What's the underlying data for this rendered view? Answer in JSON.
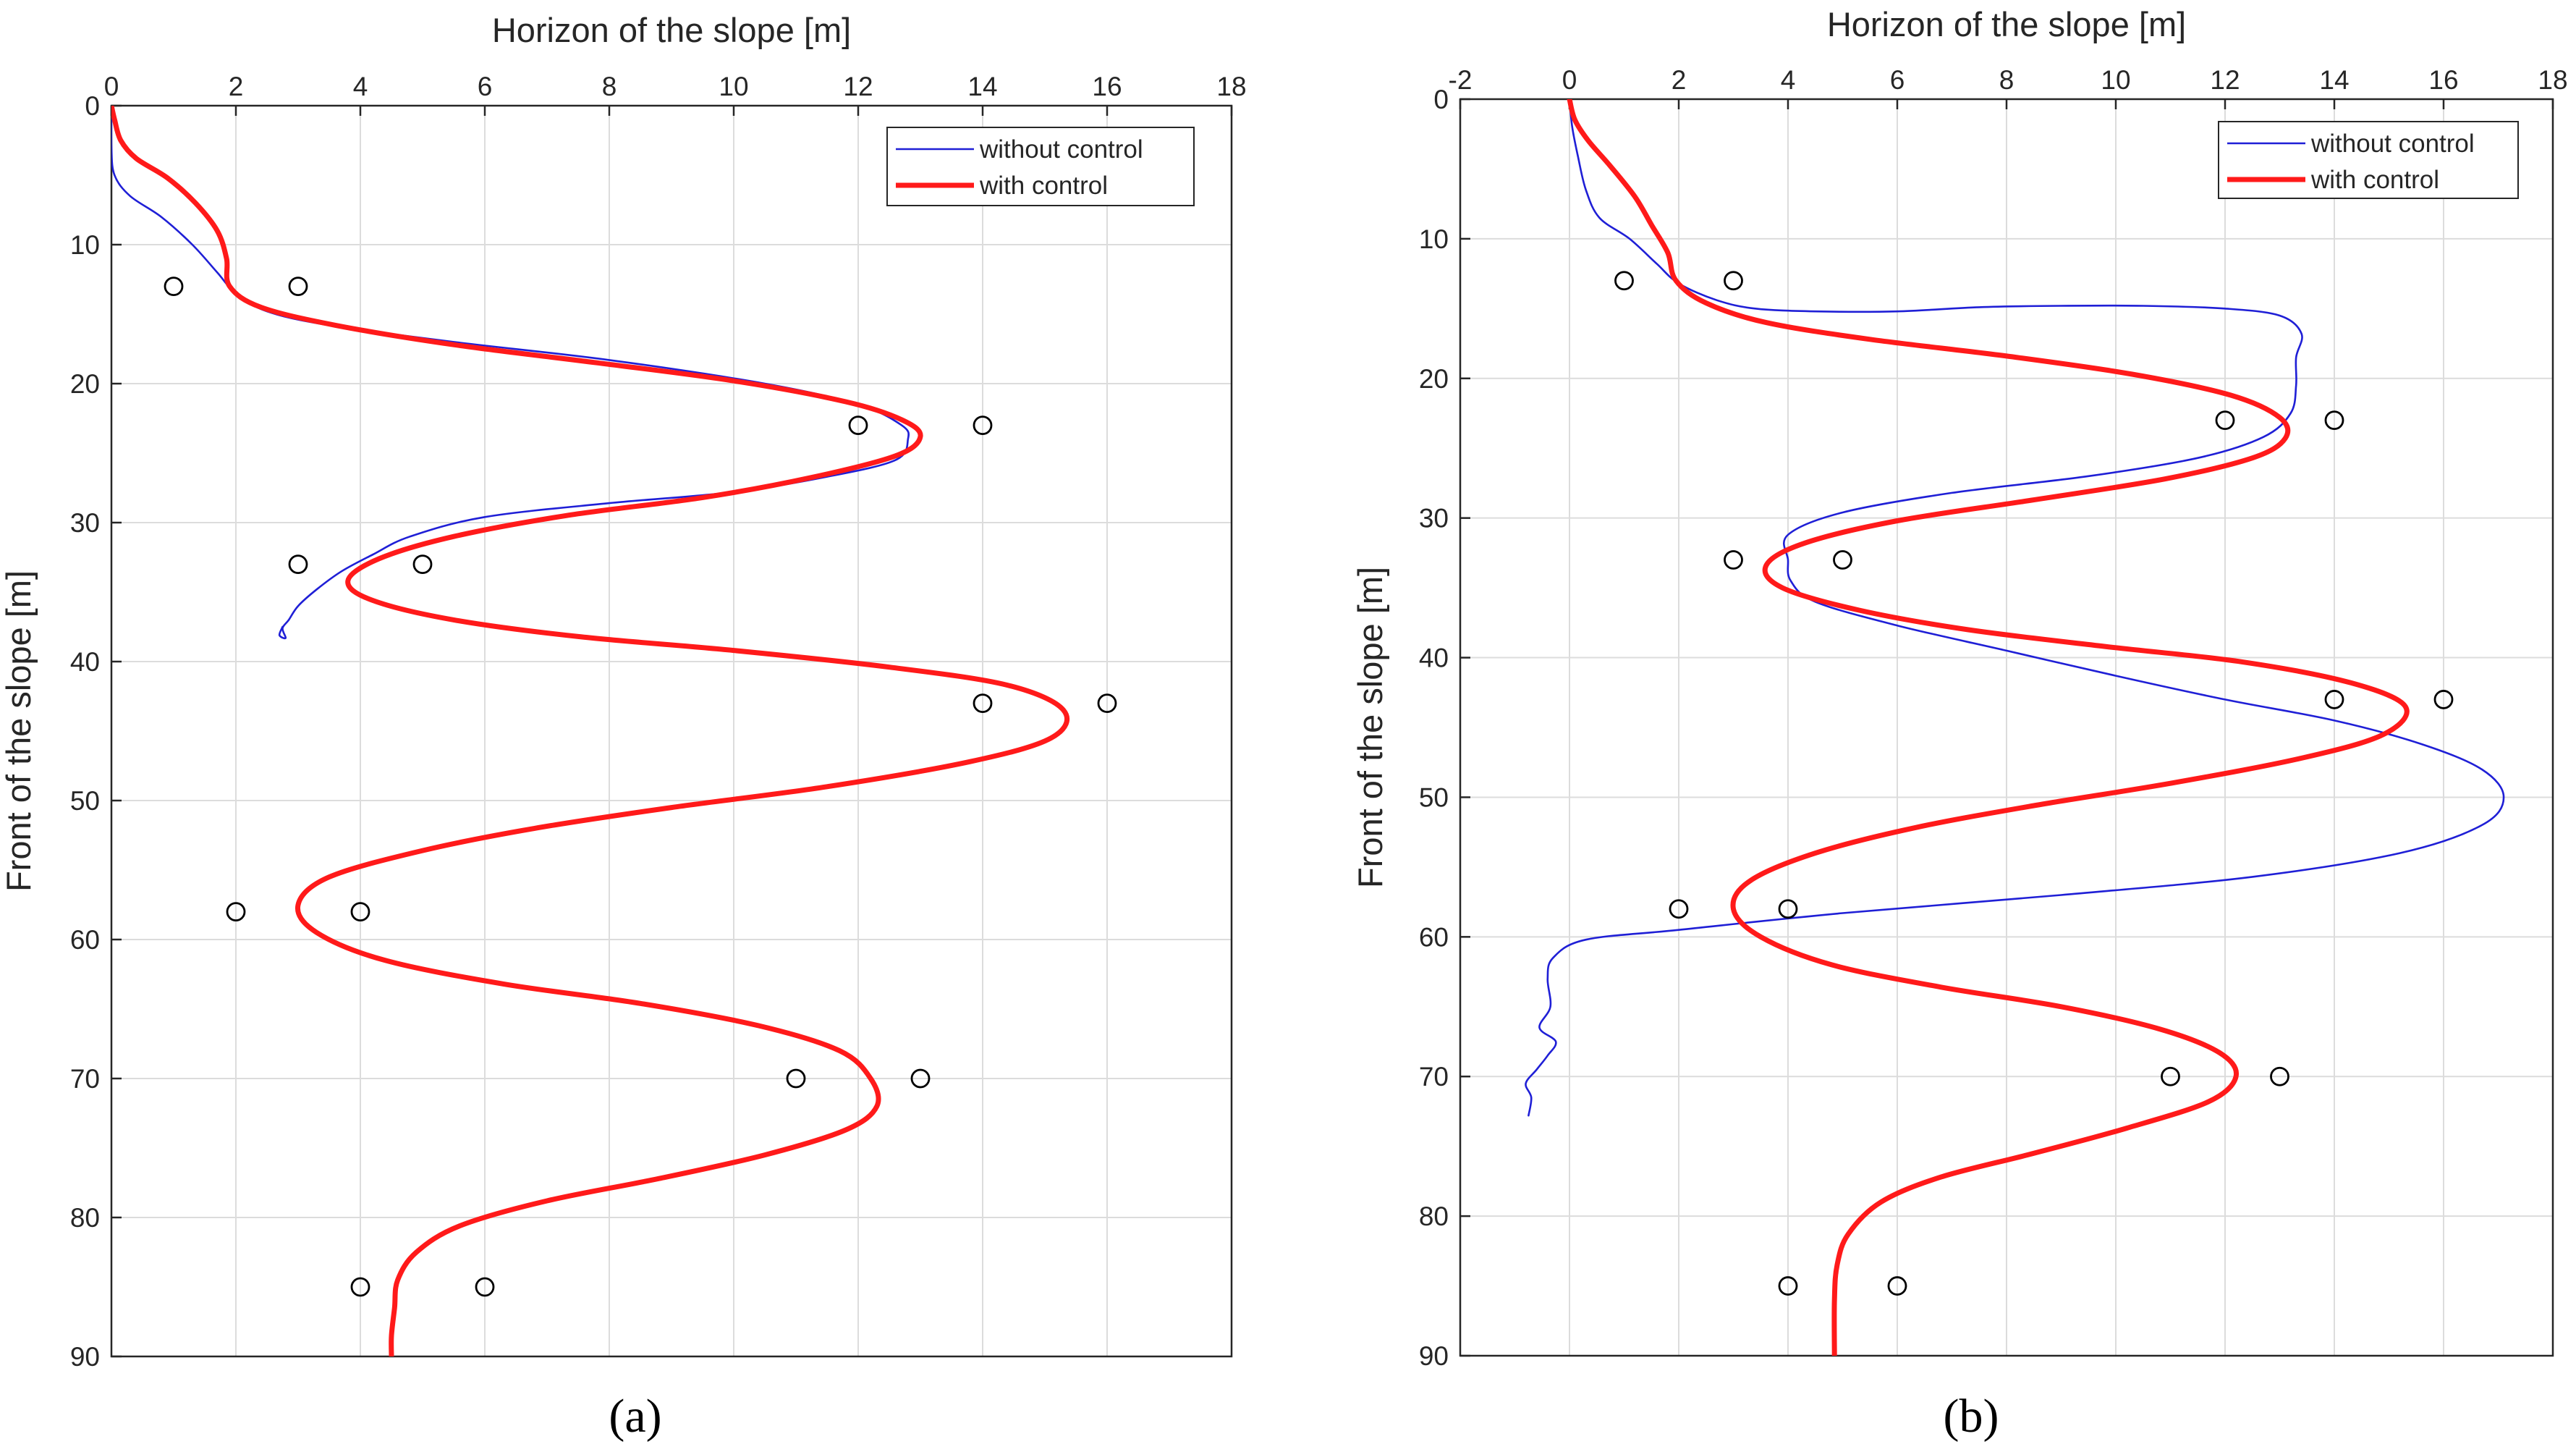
{
  "colors": {
    "without_control": "#1f1fd6",
    "with_control": "#ff1a1a",
    "markers": "#000000",
    "grid": "#dcdcdc"
  },
  "chart_data": [
    {
      "type": "line",
      "caption": "(a)",
      "xlabel": "Horizon of the slope [m]",
      "ylabel": "Front of the slope [m]",
      "xlim": [
        0,
        18
      ],
      "ylim": [
        0,
        90
      ],
      "x_ticks": [
        "0",
        "2",
        "4",
        "6",
        "8",
        "10",
        "12",
        "14",
        "16",
        "18"
      ],
      "y_ticks": [
        "0",
        "10",
        "20",
        "30",
        "40",
        "50",
        "60",
        "70",
        "80",
        "90"
      ],
      "grid": true,
      "legend_position": "top-right",
      "legend": [
        "without control",
        "with control"
      ],
      "series": [
        {
          "name": "without control",
          "points": [
            [
              0,
              0
            ],
            [
              0,
              3
            ],
            [
              0.05,
              5
            ],
            [
              0.3,
              6.5
            ],
            [
              0.8,
              8
            ],
            [
              1.3,
              10
            ],
            [
              1.7,
              12
            ],
            [
              2,
              13.5
            ],
            [
              2.5,
              14.8
            ],
            [
              3.5,
              15.8
            ],
            [
              5.5,
              17
            ],
            [
              8,
              18.3
            ],
            [
              10.5,
              20
            ],
            [
              12,
              21.5
            ],
            [
              12.7,
              23
            ],
            [
              12.8,
              24
            ],
            [
              12.6,
              25.5
            ],
            [
              11.5,
              26.7
            ],
            [
              10,
              27.8
            ],
            [
              8,
              28.6
            ],
            [
              6,
              29.6
            ],
            [
              4.8,
              31
            ],
            [
              4.2,
              32.3
            ],
            [
              3.7,
              33.5
            ],
            [
              3.3,
              34.8
            ],
            [
              3,
              36
            ],
            [
              2.85,
              37
            ],
            [
              2.75,
              37.6
            ],
            [
              2.8,
              38.3
            ],
            [
              2.7,
              38.1
            ],
            [
              2.75,
              37.5
            ]
          ]
        },
        {
          "name": "with control",
          "points": [
            [
              0,
              0
            ],
            [
              0.05,
              1
            ],
            [
              0.15,
              2.5
            ],
            [
              0.4,
              3.8
            ],
            [
              0.9,
              5.2
            ],
            [
              1.35,
              7
            ],
            [
              1.7,
              9
            ],
            [
              1.85,
              11
            ],
            [
              1.9,
              13
            ],
            [
              2.4,
              14.5
            ],
            [
              3.6,
              15.8
            ],
            [
              5.5,
              17.2
            ],
            [
              7.8,
              18.5
            ],
            [
              10,
              19.8
            ],
            [
              11.8,
              21.3
            ],
            [
              12.7,
              22.6
            ],
            [
              13,
              23.8
            ],
            [
              12.6,
              25.2
            ],
            [
              11.2,
              26.8
            ],
            [
              9.5,
              28.2
            ],
            [
              7.3,
              29.5
            ],
            [
              5.5,
              31
            ],
            [
              4.3,
              32.6
            ],
            [
              3.8,
              34.2
            ],
            [
              4.2,
              35.6
            ],
            [
              5.5,
              37
            ],
            [
              7.5,
              38.2
            ],
            [
              10,
              39.2
            ],
            [
              12.5,
              40.4
            ],
            [
              14.4,
              41.7
            ],
            [
              15.3,
              43.5
            ],
            [
              15.1,
              45.5
            ],
            [
              13.8,
              47.2
            ],
            [
              11.5,
              49
            ],
            [
              9,
              50.5
            ],
            [
              6.8,
              52
            ],
            [
              5,
              53.6
            ],
            [
              3.5,
              55.5
            ],
            [
              3,
              57.5
            ],
            [
              3.3,
              59.5
            ],
            [
              4.4,
              61.5
            ],
            [
              6.3,
              63.2
            ],
            [
              8.5,
              64.6
            ],
            [
              10.4,
              66.2
            ],
            [
              11.7,
              68
            ],
            [
              12.2,
              70
            ],
            [
              12.3,
              72
            ],
            [
              11.8,
              73.7
            ],
            [
              10.5,
              75.5
            ],
            [
              8.8,
              77.2
            ],
            [
              7,
              78.8
            ],
            [
              5.6,
              80.6
            ],
            [
              4.9,
              82.5
            ],
            [
              4.6,
              84.5
            ],
            [
              4.55,
              86.5
            ],
            [
              4.5,
              88.5
            ],
            [
              4.5,
              90
            ]
          ]
        }
      ],
      "markers": [
        [
          1,
          13
        ],
        [
          3,
          13
        ],
        [
          12,
          23
        ],
        [
          14,
          23
        ],
        [
          3,
          33
        ],
        [
          5,
          33
        ],
        [
          14,
          43
        ],
        [
          16,
          43
        ],
        [
          2,
          58
        ],
        [
          4,
          58
        ],
        [
          11,
          70
        ],
        [
          13,
          70
        ],
        [
          4,
          85
        ],
        [
          6,
          85
        ]
      ]
    },
    {
      "type": "line",
      "caption": "(b)",
      "xlabel": "Horizon of the slope [m]",
      "ylabel": "Front of the slope [m]",
      "xlim": [
        -2,
        18
      ],
      "ylim": [
        0,
        90
      ],
      "x_ticks": [
        "-2",
        "0",
        "2",
        "4",
        "6",
        "8",
        "10",
        "12",
        "14",
        "16",
        "18"
      ],
      "y_ticks": [
        "0",
        "10",
        "20",
        "30",
        "40",
        "50",
        "60",
        "70",
        "80",
        "90"
      ],
      "grid": true,
      "legend_position": "top-right",
      "legend": [
        "without control",
        "with control"
      ],
      "series": [
        {
          "name": "without control",
          "points": [
            [
              0,
              0
            ],
            [
              0.05,
              2
            ],
            [
              0.15,
              4
            ],
            [
              0.3,
              6.5
            ],
            [
              0.55,
              8.5
            ],
            [
              1.1,
              10
            ],
            [
              1.6,
              11.8
            ],
            [
              2,
              13.2
            ],
            [
              2.7,
              14.4
            ],
            [
              3.4,
              15
            ],
            [
              4.5,
              15.2
            ],
            [
              6,
              15.2
            ],
            [
              7.5,
              14.9
            ],
            [
              9,
              14.8
            ],
            [
              10.5,
              14.8
            ],
            [
              12,
              15
            ],
            [
              13,
              15.5
            ],
            [
              13.4,
              16.8
            ],
            [
              13.3,
              18.5
            ],
            [
              13.3,
              20.5
            ],
            [
              13.2,
              22.5
            ],
            [
              12.7,
              24.2
            ],
            [
              11.5,
              25.7
            ],
            [
              9.5,
              27
            ],
            [
              7,
              28.2
            ],
            [
              5,
              29.6
            ],
            [
              4,
              31.2
            ],
            [
              4,
              33
            ],
            [
              4.05,
              34.5
            ],
            [
              4.5,
              36
            ],
            [
              6,
              37.7
            ],
            [
              8,
              39.5
            ],
            [
              10,
              41.3
            ],
            [
              12,
              43
            ],
            [
              14,
              44.5
            ],
            [
              15.6,
              46.2
            ],
            [
              16.7,
              48
            ],
            [
              17.1,
              50
            ],
            [
              16.7,
              52
            ],
            [
              15.2,
              54
            ],
            [
              12.5,
              55.7
            ],
            [
              9,
              57
            ],
            [
              5,
              58.3
            ],
            [
              2,
              59.5
            ],
            [
              0.3,
              60.2
            ],
            [
              -0.3,
              61.5
            ],
            [
              -0.4,
              63
            ],
            [
              -0.35,
              65
            ],
            [
              -0.55,
              66.5
            ],
            [
              -0.25,
              67.5
            ],
            [
              -0.4,
              68.5
            ],
            [
              -0.6,
              69.5
            ],
            [
              -0.8,
              70.5
            ],
            [
              -0.7,
              71.5
            ],
            [
              -0.75,
              72.8
            ]
          ]
        },
        {
          "name": "with control",
          "points": [
            [
              0,
              0
            ],
            [
              0.1,
              1.5
            ],
            [
              0.35,
              3
            ],
            [
              0.75,
              4.8
            ],
            [
              1.2,
              7
            ],
            [
              1.5,
              9
            ],
            [
              1.8,
              11
            ],
            [
              1.95,
              13
            ],
            [
              2.5,
              14.6
            ],
            [
              3.6,
              16
            ],
            [
              5.5,
              17.2
            ],
            [
              8,
              18.4
            ],
            [
              10.3,
              19.7
            ],
            [
              12.1,
              21.2
            ],
            [
              13,
              22.8
            ],
            [
              13.1,
              24.3
            ],
            [
              12.5,
              25.7
            ],
            [
              10.9,
              27.2
            ],
            [
              8.5,
              28.7
            ],
            [
              6,
              30.2
            ],
            [
              4.3,
              31.8
            ],
            [
              3.6,
              33.4
            ],
            [
              3.9,
              35
            ],
            [
              5.3,
              36.6
            ],
            [
              7.3,
              38
            ],
            [
              9.8,
              39.2
            ],
            [
              12.3,
              40.3
            ],
            [
              14.3,
              41.8
            ],
            [
              15.3,
              43.5
            ],
            [
              14.9,
              45.5
            ],
            [
              13.4,
              47.2
            ],
            [
              11,
              49
            ],
            [
              8.5,
              50.6
            ],
            [
              6.3,
              52.2
            ],
            [
              4.5,
              54
            ],
            [
              3.3,
              56
            ],
            [
              3,
              58
            ],
            [
              3.5,
              60
            ],
            [
              4.8,
              62
            ],
            [
              6.8,
              63.6
            ],
            [
              9,
              65
            ],
            [
              10.8,
              66.6
            ],
            [
              11.9,
              68.3
            ],
            [
              12.2,
              70
            ],
            [
              11.7,
              71.8
            ],
            [
              10.2,
              73.7
            ],
            [
              8.5,
              75.5
            ],
            [
              6.8,
              77.2
            ],
            [
              5.7,
              79
            ],
            [
              5.1,
              81.3
            ],
            [
              4.9,
              83.5
            ],
            [
              4.85,
              86
            ],
            [
              4.85,
              90
            ]
          ]
        }
      ],
      "markers": [
        [
          1,
          13
        ],
        [
          3,
          13
        ],
        [
          12,
          23
        ],
        [
          14,
          23
        ],
        [
          3,
          33
        ],
        [
          5,
          33
        ],
        [
          14,
          43
        ],
        [
          16,
          43
        ],
        [
          2,
          58
        ],
        [
          4,
          58
        ],
        [
          11,
          70
        ],
        [
          13,
          70
        ],
        [
          4,
          85
        ],
        [
          6,
          85
        ]
      ]
    }
  ]
}
